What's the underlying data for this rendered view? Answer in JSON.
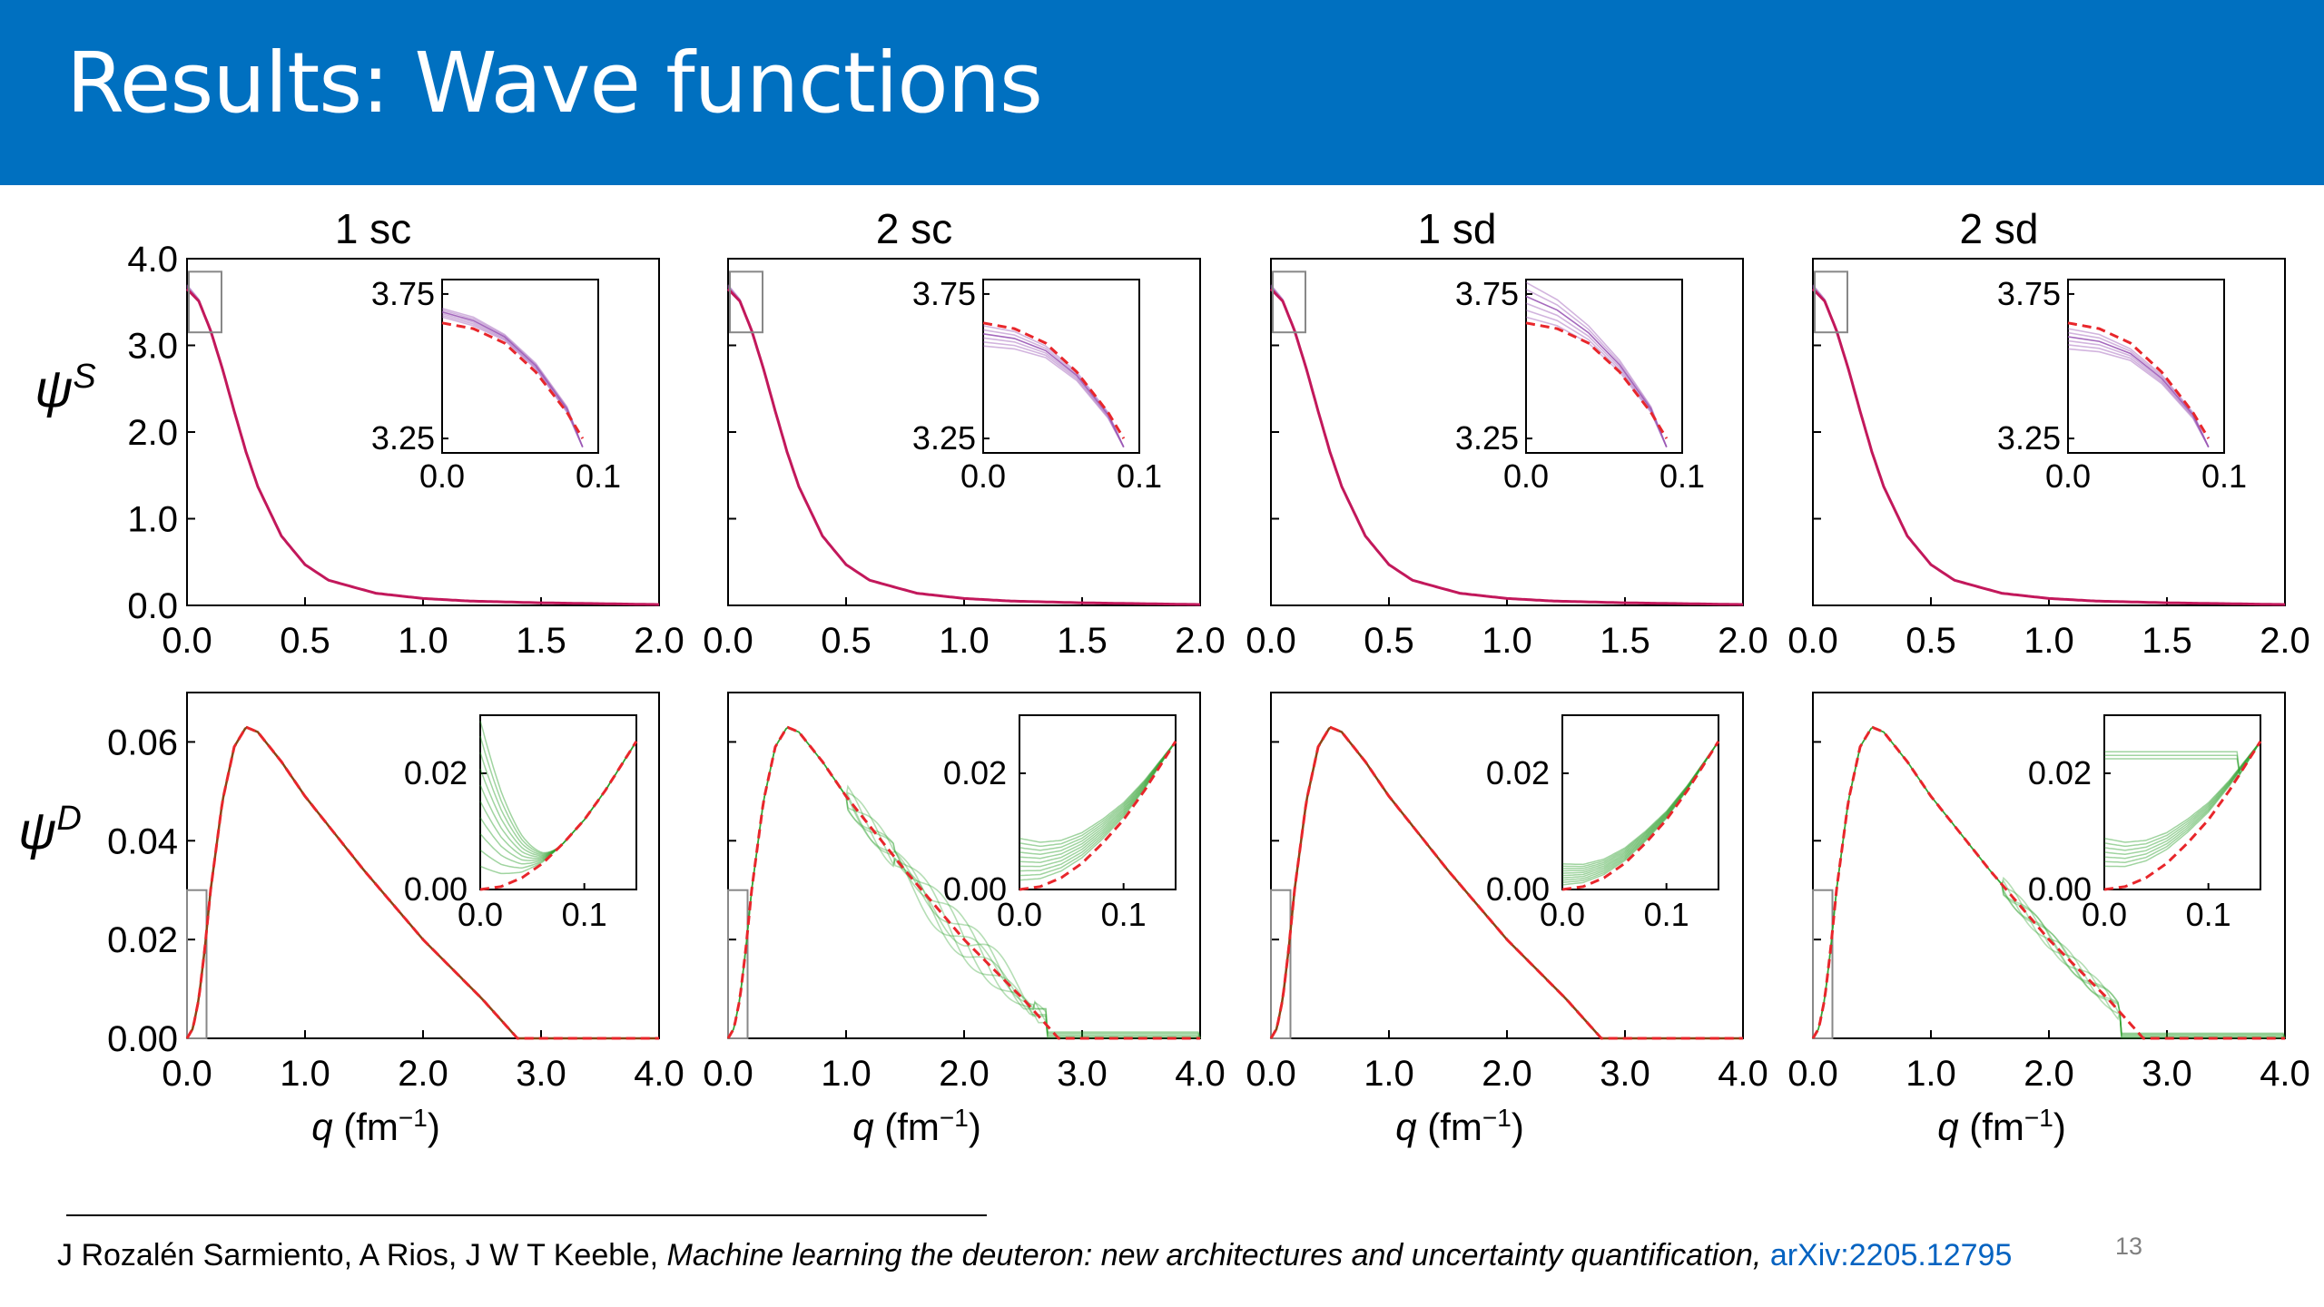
{
  "slide": {
    "title": "Results: Wave functions",
    "page_number": "13"
  },
  "citation": {
    "authors": "J Rozalén Sarmiento, A Rios, J W T Keeble, ",
    "paper_title": "Machine learning the deuteron: new architectures and uncertainty quantification,",
    "link_text": "arXiv:2205.12795"
  },
  "colors": {
    "title_bar": "#0070c0",
    "s_wave_ensemble": "#9b59b6",
    "d_wave_ensemble": "#2ca02c",
    "reference_dashed": "#e8262b",
    "s_main_curve": "#c2185b",
    "d_main_curve": "#8b4513"
  },
  "chart_data": {
    "type": "line",
    "column_titles": [
      "1 sc",
      "2 sc",
      "1 sd",
      "2 sd"
    ],
    "row_labels": {
      "top": {
        "base": "ψ",
        "sup": "S"
      },
      "bottom": {
        "base": "ψ",
        "sup": "D"
      }
    },
    "xlabel": {
      "var": "q",
      "unit": "(fm",
      "exp": "−1",
      "close": ")"
    },
    "top_row": {
      "xlim": [
        0,
        2
      ],
      "ylim": [
        0,
        4
      ],
      "xticks": [
        "0.0",
        "0.5",
        "1.0",
        "1.5",
        "2.0"
      ],
      "yticks": [
        "0.0",
        "1.0",
        "2.0",
        "3.0",
        "4.0"
      ],
      "series": [
        {
          "name": "ensemble",
          "x": [
            0,
            0.05,
            0.1,
            0.15,
            0.2,
            0.25,
            0.3,
            0.4,
            0.5,
            0.6,
            0.8,
            1.0,
            1.2,
            1.5,
            2.0
          ],
          "y": [
            3.68,
            3.52,
            3.17,
            2.73,
            2.24,
            1.77,
            1.37,
            0.8,
            0.47,
            0.29,
            0.14,
            0.08,
            0.05,
            0.03,
            0.01
          ]
        },
        {
          "name": "reference",
          "x": [
            0,
            0.05,
            0.1,
            0.15,
            0.2,
            0.25,
            0.3,
            0.4,
            0.5,
            0.6,
            0.8,
            1.0,
            1.2,
            1.5,
            2.0
          ],
          "y": [
            3.65,
            3.51,
            3.17,
            2.73,
            2.24,
            1.77,
            1.37,
            0.8,
            0.47,
            0.29,
            0.14,
            0.08,
            0.05,
            0.03,
            0.01
          ]
        }
      ],
      "inset": {
        "xlim": [
          0,
          0.1
        ],
        "ylim": [
          3.2,
          3.8
        ],
        "xticks": [
          "0.0",
          "0.1"
        ],
        "yticks": [
          "3.25",
          "3.75"
        ],
        "reference": {
          "x": [
            0,
            0.02,
            0.04,
            0.06,
            0.08,
            0.09
          ],
          "y": [
            3.65,
            3.63,
            3.58,
            3.48,
            3.34,
            3.25
          ]
        },
        "panels": [
          {
            "ensemble_top": [
              3.7,
              3.67,
              3.61,
              3.51,
              3.36
            ],
            "ensemble_bottom": [
              3.67,
              3.64,
              3.59,
              3.49,
              3.34
            ]
          },
          {
            "ensemble_top": [
              3.64,
              3.62,
              3.57,
              3.48,
              3.34
            ],
            "ensemble_bottom": [
              3.57,
              3.56,
              3.53,
              3.45,
              3.32
            ]
          },
          {
            "ensemble_top": [
              3.79,
              3.73,
              3.64,
              3.52,
              3.36
            ],
            "ensemble_bottom": [
              3.67,
              3.64,
              3.58,
              3.48,
              3.34
            ]
          },
          {
            "ensemble_top": [
              3.63,
              3.61,
              3.56,
              3.47,
              3.34
            ],
            "ensemble_bottom": [
              3.56,
              3.55,
              3.52,
              3.44,
              3.32
            ]
          }
        ]
      }
    },
    "bottom_row": {
      "xlim": [
        0,
        4
      ],
      "ylim": [
        0,
        0.07
      ],
      "xticks": [
        "0.0",
        "1.0",
        "2.0",
        "3.0",
        "4.0"
      ],
      "yticks": [
        "0.00",
        "0.02",
        "0.04",
        "0.06"
      ],
      "series": [
        {
          "name": "reference",
          "x": [
            0,
            0.05,
            0.1,
            0.15,
            0.2,
            0.3,
            0.4,
            0.5,
            0.6,
            0.8,
            1.0,
            1.5,
            2.0,
            2.5,
            2.8,
            3.0,
            4.0
          ],
          "y": [
            0,
            0.002,
            0.008,
            0.018,
            0.03,
            0.048,
            0.059,
            0.063,
            0.062,
            0.056,
            0.049,
            0.034,
            0.02,
            0.008,
            0.0,
            0.0,
            0.0
          ]
        }
      ],
      "inset": {
        "xlim": [
          0,
          0.15
        ],
        "ylim": [
          0,
          0.03
        ],
        "xticks": [
          "0.0",
          "0.1"
        ],
        "yticks": [
          "0.00",
          "0.02"
        ],
        "reference": {
          "x": [
            0,
            0.02,
            0.04,
            0.06,
            0.08,
            0.1,
            0.12,
            0.15
          ],
          "y": [
            0,
            0.0005,
            0.002,
            0.0045,
            0.008,
            0.012,
            0.017,
            0.0255
          ]
        }
      }
    }
  }
}
